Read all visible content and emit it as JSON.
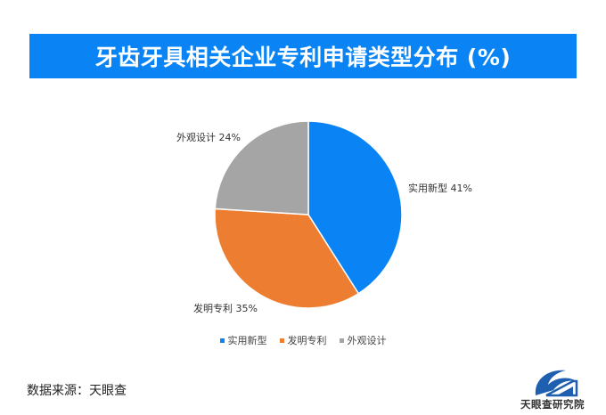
{
  "title": "牙齿牙具相关企业专利申请类型分布 (%)",
  "chart_data": {
    "type": "pie",
    "title": "牙齿牙具相关企业专利申请类型分布 (%)",
    "slices": [
      {
        "name": "实用新型",
        "value": 41,
        "label": "实用新型 41%",
        "color": "#0a84f4"
      },
      {
        "name": "发明专利",
        "value": 35,
        "label": "发明专利 35%",
        "color": "#ed7d31"
      },
      {
        "name": "外观设计",
        "value": 24,
        "label": "外观设计 24%",
        "color": "#a5a5a5"
      }
    ],
    "start_angle": "12 o'clock",
    "direction": "clockwise",
    "legend_placement": "bottom"
  },
  "source": "数据来源：天眼查",
  "logo": {
    "text": "天眼查研究院"
  }
}
